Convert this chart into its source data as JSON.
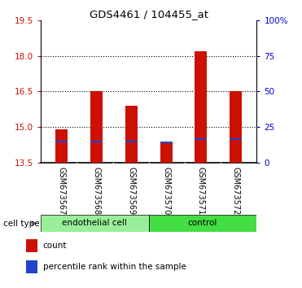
{
  "title": "GDS4461 / 104455_at",
  "samples": [
    "GSM673567",
    "GSM673568",
    "GSM673569",
    "GSM673570",
    "GSM673571",
    "GSM673572"
  ],
  "count_values": [
    14.9,
    16.5,
    15.9,
    14.4,
    18.2,
    16.5
  ],
  "percentile_values": [
    14.4,
    14.4,
    14.4,
    14.35,
    14.5,
    14.5
  ],
  "ymin": 13.5,
  "ymax": 19.5,
  "yticks_left": [
    13.5,
    15.0,
    16.5,
    18.0,
    19.5
  ],
  "yticks_right_pct": [
    0,
    25,
    50,
    75,
    100
  ],
  "yticks_right_labels": [
    "0",
    "25",
    "50",
    "75",
    "100%"
  ],
  "grid_lines": [
    15.0,
    16.5,
    18.0
  ],
  "bar_color": "#CC1100",
  "percentile_color": "#2244CC",
  "bar_width": 0.35,
  "group1_name": "endothelial cell",
  "group1_color": "#99EE99",
  "group2_name": "control",
  "group2_color": "#44DD44",
  "cell_type_label": "cell type",
  "legend_count": "count",
  "legend_percentile": "percentile rank within the sample",
  "tick_color_left": "#CC1100",
  "tick_color_right": "#0000CC",
  "plot_bg": "#FFFFFF",
  "names_bg": "#C8C8C8"
}
